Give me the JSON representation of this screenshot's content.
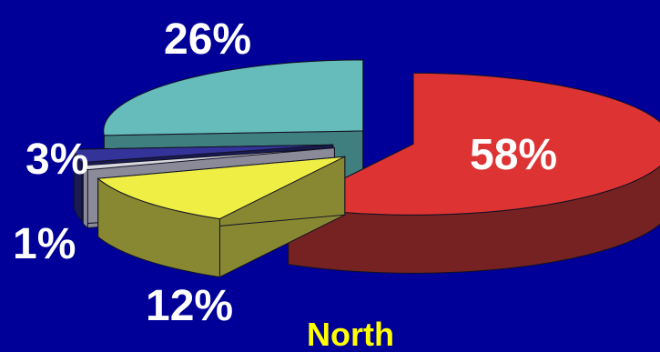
{
  "chart_data": {
    "type": "pie",
    "style": "3d-exploded",
    "title": "North",
    "slices": [
      {
        "label": "58%",
        "value": 58,
        "top_color": "#dd3333",
        "side_color": "#772222"
      },
      {
        "label": "12%",
        "value": 12,
        "top_color": "#eeee44",
        "side_color": "#888833"
      },
      {
        "label": "1%",
        "value": 1,
        "top_color": "#d8d8e0",
        "side_color": "#8a8a99"
      },
      {
        "label": "3%",
        "value": 3,
        "top_color": "#333399",
        "side_color": "#1a1a55"
      },
      {
        "label": "26%",
        "value": 26,
        "top_color": "#66bbbb",
        "side_color": "#3f7f7f"
      }
    ],
    "legend": "none",
    "background_color": "#000099",
    "label_color": "#ffffff",
    "title_color": "#ffff00"
  }
}
